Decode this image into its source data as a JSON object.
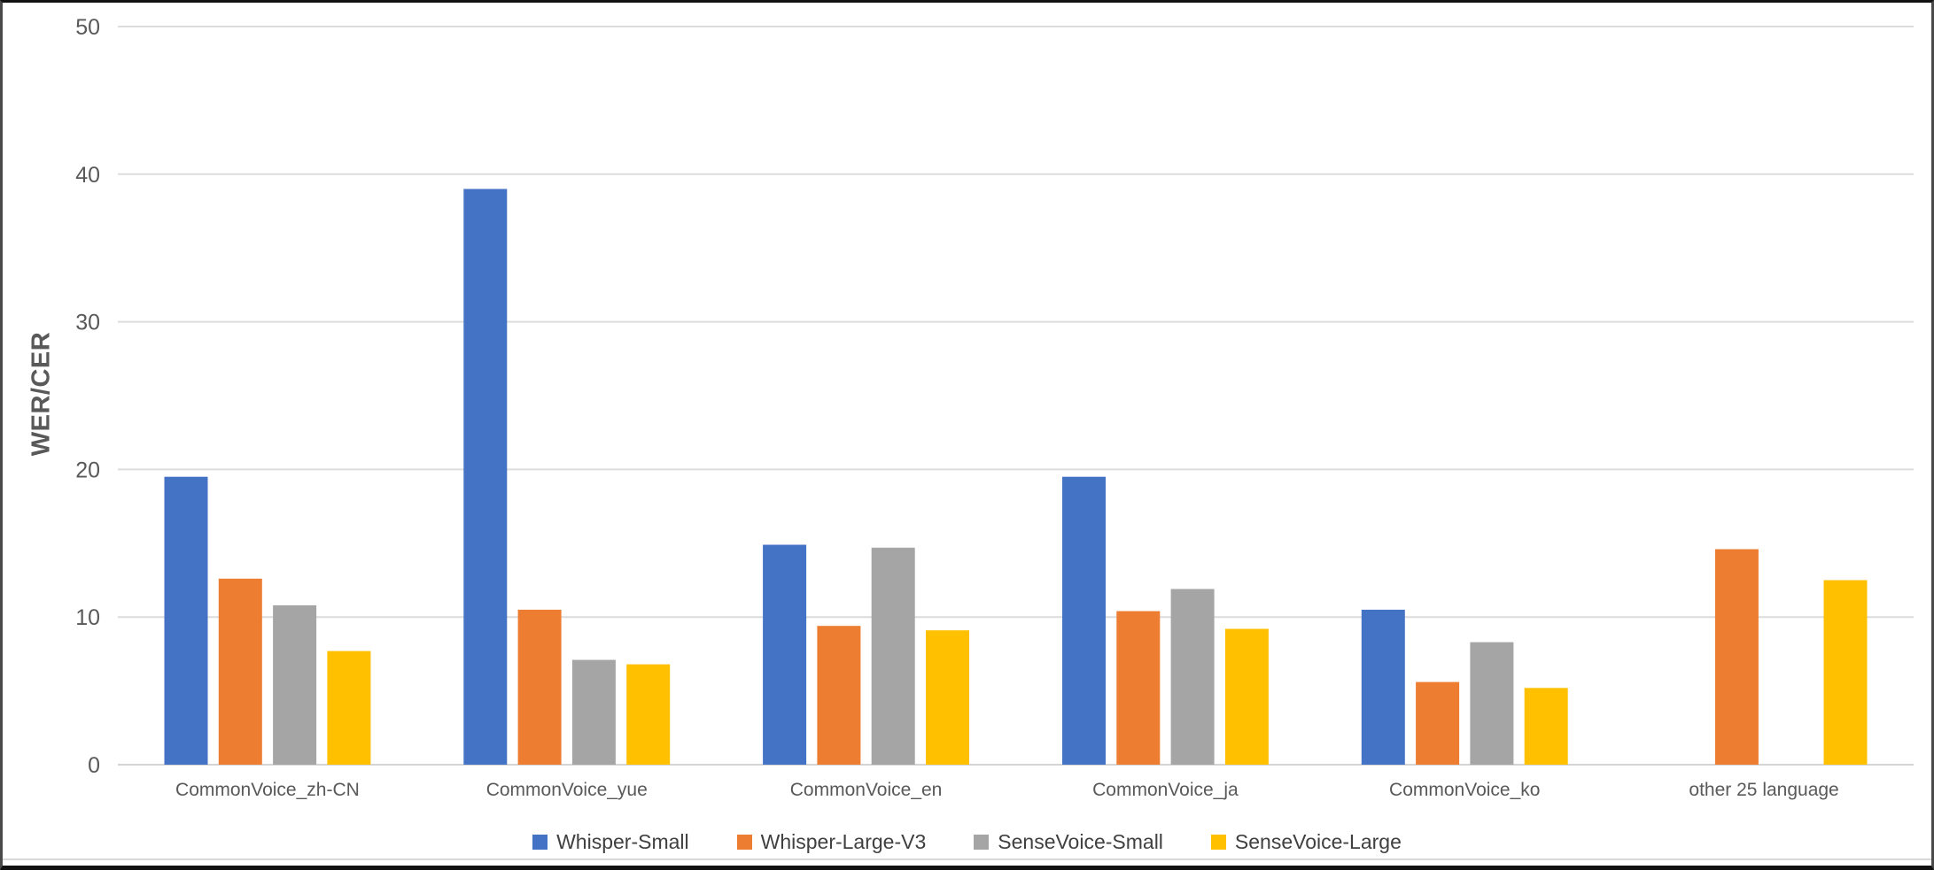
{
  "chart_data": {
    "type": "bar",
    "title": "",
    "xlabel": "",
    "ylabel": "WER/CER",
    "ylim": [
      0,
      50
    ],
    "yticks": [
      0,
      10,
      20,
      30,
      40,
      50
    ],
    "grid": true,
    "legend_position": "bottom",
    "categories": [
      "CommonVoice_zh-CN",
      "CommonVoice_yue",
      "CommonVoice_en",
      "CommonVoice_ja",
      "CommonVoice_ko",
      "other 25 language"
    ],
    "series": [
      {
        "name": "Whisper-Small",
        "color": "#4472C4",
        "values": [
          19.5,
          39.0,
          14.9,
          19.5,
          10.5,
          null
        ]
      },
      {
        "name": "Whisper-Large-V3",
        "color": "#ED7D31",
        "values": [
          12.6,
          10.5,
          9.4,
          10.4,
          5.6,
          14.6
        ]
      },
      {
        "name": "SenseVoice-Small",
        "color": "#A5A5A5",
        "values": [
          10.8,
          7.1,
          14.7,
          11.9,
          8.3,
          null
        ]
      },
      {
        "name": "SenseVoice-Large",
        "color": "#FFC000",
        "values": [
          7.7,
          6.8,
          9.1,
          9.2,
          5.2,
          12.5
        ]
      }
    ],
    "colors": {
      "gridline": "#dcdcdc",
      "axis_line": "#d4d4d4",
      "tick_label": "#595959",
      "category_label": "#595959",
      "axis_title": "#595959",
      "legend_text": "#404040"
    }
  }
}
